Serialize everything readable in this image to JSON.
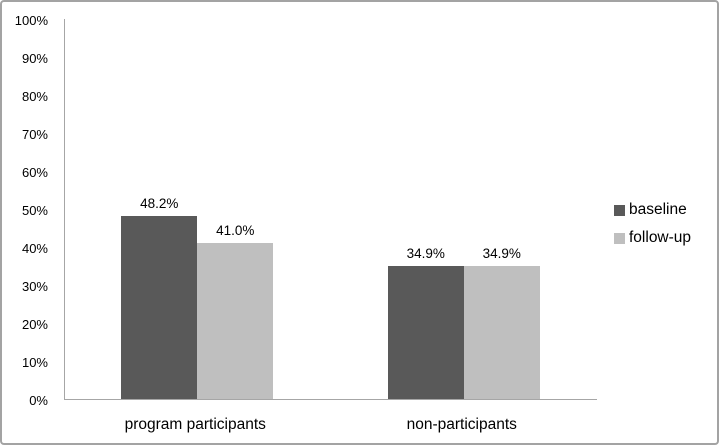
{
  "chart_data": {
    "type": "bar",
    "title": "",
    "xlabel": "",
    "ylabel": "",
    "categories": [
      "program participants",
      "non-participants"
    ],
    "series": [
      {
        "name": "baseline",
        "color": "#595959",
        "values": [
          48.2,
          34.9
        ],
        "labels": [
          "48.2%",
          "34.9%"
        ]
      },
      {
        "name": "follow-up",
        "color": "#BFBFBF",
        "values": [
          41.0,
          34.9
        ],
        "labels": [
          "41.0%",
          "34.9%"
        ]
      }
    ],
    "ylim": [
      0,
      100
    ],
    "ytick_step": 10,
    "ytick_labels": [
      "0%",
      "10%",
      "20%",
      "30%",
      "40%",
      "50%",
      "60%",
      "70%",
      "80%",
      "90%",
      "100%"
    ],
    "grid": false,
    "legend_position": "right"
  },
  "colors": {
    "bar_baseline": "#595959",
    "bar_followup": "#BFBFBF",
    "axis_line": "#A6A6A6",
    "frame_border": "#A3A3A3",
    "text": "#000000",
    "background": "#FFFFFF"
  }
}
